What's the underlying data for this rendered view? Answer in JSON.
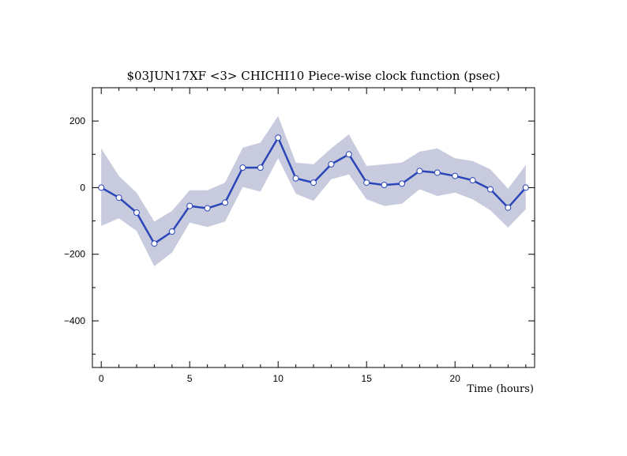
{
  "chart_data": {
    "type": "line",
    "title": "$03JUN17XF <3>  CHICHI10  Piece-wise clock function (psec)",
    "xlabel": "Time (hours)",
    "ylabel": "",
    "xlim": [
      -0.5,
      24.5
    ],
    "ylim": [
      -540,
      300
    ],
    "x_ticks": [
      0,
      5,
      10,
      15,
      20
    ],
    "y_ticks": [
      200,
      0,
      -200,
      -400
    ],
    "x_minor_step": 1,
    "y_minor_step": 100,
    "grid": false,
    "band_color": "#c8cbdd",
    "line_color": "#2a46b8",
    "marker_fill": "#ffffff",
    "x": [
      0,
      1,
      2,
      3,
      4,
      5,
      6,
      7,
      8,
      9,
      10,
      11,
      12,
      13,
      14,
      15,
      16,
      17,
      18,
      19,
      20,
      21,
      22,
      23,
      24
    ],
    "series": [
      {
        "values": [
          0,
          -30,
          -75,
          -168,
          -132,
          -55,
          -62,
          -45,
          60,
          60,
          150,
          28,
          15,
          70,
          100,
          15,
          8,
          12,
          50,
          45,
          35,
          22,
          -5,
          -60,
          0
        ],
        "lower": [
          -115,
          -92,
          -130,
          -236,
          -195,
          -105,
          -118,
          -102,
          2,
          -12,
          88,
          -18,
          -40,
          25,
          40,
          -35,
          -55,
          -48,
          -5,
          -25,
          -15,
          -35,
          -68,
          -120,
          -65
        ],
        "upper": [
          118,
          35,
          -15,
          -102,
          -70,
          -8,
          -8,
          15,
          120,
          135,
          215,
          75,
          70,
          118,
          160,
          65,
          70,
          75,
          108,
          118,
          88,
          80,
          55,
          -3,
          68
        ]
      }
    ]
  }
}
